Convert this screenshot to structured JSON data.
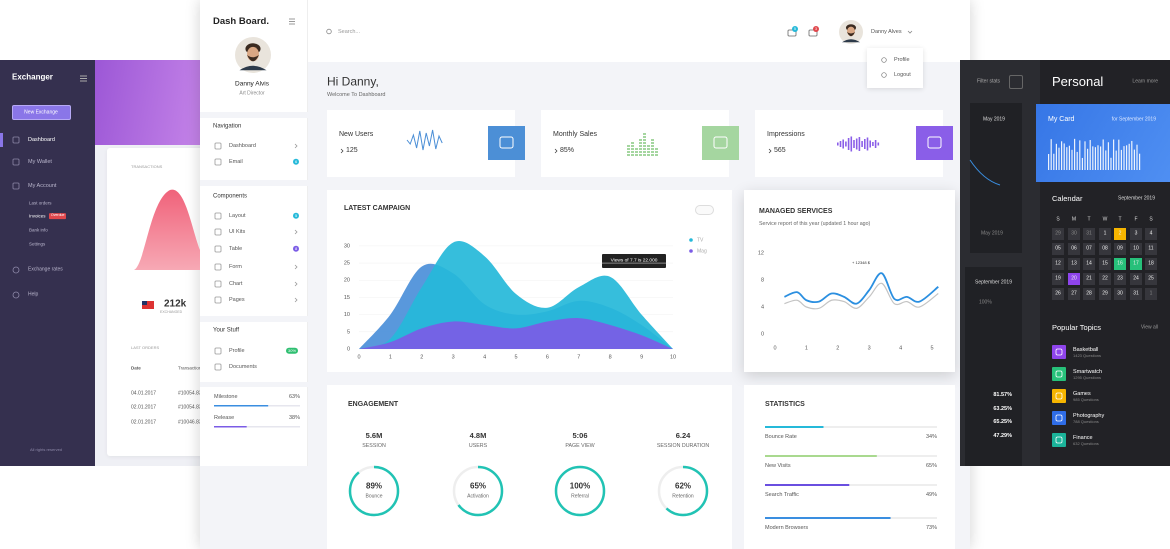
{
  "exchanger": {
    "brand": "Exchanger",
    "button": "New Exchange",
    "menu": [
      "Dashboard",
      "My Wallet",
      "My Account"
    ],
    "submenu": [
      "Last orders",
      "Invoices",
      "Bank info",
      "Settings"
    ],
    "badge": "Overdue",
    "menu2": [
      "Exchange rates",
      "Help"
    ],
    "footer": "All rights reserved",
    "card_title": "TRANSACTIONS",
    "amount": "212k",
    "amount_caption": "EXCHANGED",
    "orders_title": "LAST ORDERS",
    "orders_header": [
      "Date",
      "Transaction"
    ],
    "orders": [
      [
        "04.01.2017",
        "#10054.83"
      ],
      [
        "02.01.2017",
        "#10054.83"
      ],
      [
        "02.01.2017",
        "#10046.83"
      ]
    ]
  },
  "sidebar": {
    "brand": "Dash Board.",
    "user": "Danny Alvis",
    "role": "Art Director",
    "sections": [
      {
        "title": "Navigation",
        "items": [
          {
            "label": "Dashboard"
          },
          {
            "label": "Email",
            "badge": "6"
          }
        ]
      },
      {
        "title": "Components",
        "items": [
          {
            "label": "Layout",
            "badge": "5"
          },
          {
            "label": "UI Kits"
          },
          {
            "label": "Table",
            "badge": "8"
          },
          {
            "label": "Form"
          },
          {
            "label": "Chart"
          },
          {
            "label": "Pages"
          }
        ]
      },
      {
        "title": "Your Stuff",
        "items": [
          {
            "label": "Profile",
            "badge": "30%"
          },
          {
            "label": "Documents"
          }
        ]
      }
    ],
    "progress": [
      {
        "name": "Milestone",
        "value": 63,
        "label": "63%"
      },
      {
        "name": "Release",
        "value": 38,
        "label": "38%"
      }
    ]
  },
  "header": {
    "search": "Search...",
    "notifications": [
      "5",
      "3"
    ],
    "user": "Danny Alves",
    "menu": [
      "Profile",
      "Logout"
    ]
  },
  "greeting": {
    "title": "Hi Danny,",
    "subtitle": "Welcome To Dashboard"
  },
  "cards": [
    {
      "title": "New Users",
      "value": "125"
    },
    {
      "title": "Monthly Sales",
      "value": "85%"
    },
    {
      "title": "Impressions",
      "value": "565"
    }
  ],
  "campaign": {
    "type": "area",
    "title": "LATEST CAMPAIGN",
    "x": [
      0,
      1,
      2,
      3,
      4,
      5,
      6,
      7,
      8,
      9,
      10
    ],
    "series": [
      {
        "color": "#4b8fd9",
        "values": [
          0,
          10,
          24,
          22,
          13,
          10,
          11,
          14,
          12,
          7,
          0
        ]
      },
      {
        "name": "TV",
        "color": "#25b9d9",
        "values": [
          0,
          3,
          18,
          31,
          27,
          16,
          12,
          18,
          21,
          10,
          0
        ]
      },
      {
        "name": "Mag",
        "color": "#7b5ce6",
        "values": [
          0,
          2,
          6,
          8,
          7,
          6,
          8,
          9,
          7,
          4,
          0
        ]
      }
    ],
    "xlim": [
      0,
      10
    ],
    "ylim": [
      0,
      32
    ],
    "xticks": [
      0,
      1,
      2,
      3,
      4,
      5,
      6,
      7,
      8,
      9,
      10
    ],
    "yticks": [
      0,
      5,
      10,
      15,
      20,
      25,
      30
    ],
    "tooltip": "Views of 7.7 is 22.000"
  },
  "services": {
    "type": "line",
    "title": "MANAGED SERVICES",
    "subtitle": "Service report of this year (updated 1 hour ago)",
    "x": [
      0.3,
      0.7,
      1,
      1.4,
      1.8,
      2.2,
      2.6,
      3,
      3.4,
      3.8,
      4.2,
      4.6,
      5.2
    ],
    "series": [
      {
        "color": "#2b8fe0",
        "values": [
          5.5,
          6.2,
          5,
          4.8,
          6,
          5.5,
          4.5,
          6.5,
          9,
          5.2,
          5.5,
          4.8,
          7
        ]
      },
      {
        "color": "#c4c4c4",
        "values": [
          4.5,
          5,
          4,
          3.8,
          5,
          4.8,
          3.8,
          5.5,
          7.5,
          4.5,
          4.8,
          4,
          6
        ]
      }
    ],
    "xlim": [
      0,
      5
    ],
    "ylim": [
      0,
      12
    ],
    "xticks": [
      0,
      1,
      2,
      3,
      4,
      5
    ],
    "yticks": [
      0,
      4,
      8,
      12
    ],
    "annotation": "+ 12348 $"
  },
  "engagement": {
    "title": "ENGAGEMENT",
    "metrics": [
      {
        "value": "5.6M",
        "label": "SESSION"
      },
      {
        "value": "4.8M",
        "label": "USERS"
      },
      {
        "value": "5:06",
        "label": "PAGE VIEW"
      },
      {
        "value": "6.24",
        "label": "SESSION DURATION"
      }
    ],
    "rings": [
      {
        "value": 89,
        "label": "89%",
        "name": "Bounce"
      },
      {
        "value": 65,
        "label": "65%",
        "name": "Activation"
      },
      {
        "value": 100,
        "label": "100%",
        "name": "Referral"
      },
      {
        "value": 62,
        "label": "62%",
        "name": "Retention"
      }
    ]
  },
  "statistics": {
    "title": "STATISTICS",
    "rows": [
      {
        "name": "Bounce Rate",
        "value": 34,
        "label": "34%",
        "color": "#25b9d9"
      },
      {
        "name": "New Visits",
        "value": 65,
        "label": "65%",
        "color": "#a9d98f"
      },
      {
        "name": "Search Traffic",
        "value": 49,
        "label": "49%",
        "color": "#6a4fe0"
      },
      {
        "name": "Modern Browsers",
        "value": 73,
        "label": "73%",
        "color": "#3a8ee0"
      }
    ]
  },
  "filter": {
    "label": "Filter stats",
    "months": [
      "May 2019",
      "May 2019",
      "September 2019"
    ],
    "percent": "100%",
    "rates": [
      "81.57%",
      "63.25%",
      "65.25%",
      "47.29%"
    ]
  },
  "personal": {
    "title": "Personal",
    "link": "Learn more",
    "card_title": "My Card",
    "card_period": "for September 2019",
    "calendar_title": "Calendar",
    "calendar_month": "September 2019",
    "weekdays": [
      "S",
      "M",
      "T",
      "W",
      "T",
      "F",
      "S"
    ],
    "days": [
      [
        "29",
        "30",
        "31",
        "1",
        "2",
        "3",
        "4"
      ],
      [
        "05",
        "06",
        "07",
        "08",
        "09",
        "10",
        "11"
      ],
      [
        "12",
        "13",
        "14",
        "15",
        "16",
        "17",
        "18"
      ],
      [
        "19",
        "20",
        "21",
        "22",
        "23",
        "24",
        "25"
      ],
      [
        "26",
        "27",
        "28",
        "29",
        "30",
        "31",
        "1"
      ]
    ],
    "topics_title": "Popular Topics",
    "topics_link": "View all",
    "topics": [
      {
        "name": "Basketball",
        "count": "1423 Questions",
        "color": "#8e44ec"
      },
      {
        "name": "Smartwatch",
        "count": "1295 Questions",
        "color": "#27c07a"
      },
      {
        "name": "Games",
        "count": "985 Questions",
        "color": "#f6b500"
      },
      {
        "name": "Photography",
        "count": "788 Questions",
        "color": "#2f6de8"
      },
      {
        "name": "Finance",
        "count": "632 Questions",
        "color": "#1bb39a"
      }
    ]
  }
}
